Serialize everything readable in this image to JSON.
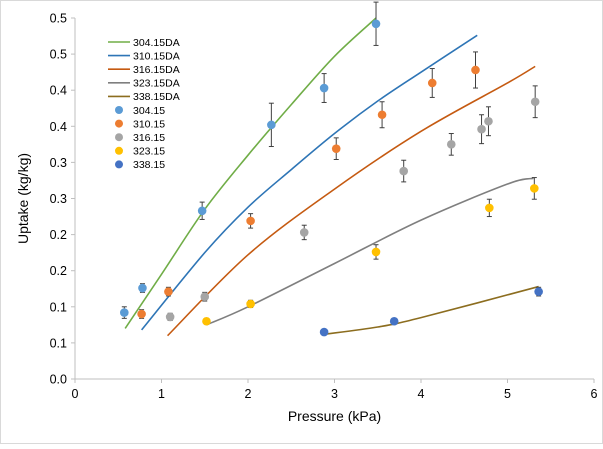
{
  "chart_data": {
    "type": "scatter",
    "title": "",
    "xlabel": "Pressure (kPa)",
    "ylabel": "Uptake (kg/kg)",
    "xlim": [
      0,
      6
    ],
    "ylim": [
      0,
      0.5
    ],
    "x_ticks": [
      0,
      1,
      2,
      3,
      4,
      5,
      6
    ],
    "y_ticks": [
      0,
      0.05,
      0.1,
      0.15,
      0.2,
      0.25,
      0.3,
      0.35,
      0.4,
      0.45,
      0.5
    ],
    "x_tick_labels": [
      "0",
      "1",
      "2",
      "3",
      "4",
      "5",
      "6"
    ],
    "y_tick_labels": [
      "0.0",
      "0.1",
      "0.1",
      "0.2",
      "0.2",
      "0.3",
      "0.3",
      "0.4",
      "0.4",
      "0.5",
      "0.5"
    ],
    "grid": false,
    "legend_position": "top-left",
    "fit_lines": [
      {
        "name": "304.15DA",
        "color": "#70ad47",
        "x": [
          0.58,
          1.0,
          1.5,
          2.0,
          2.5,
          3.0,
          3.48
        ],
        "y": [
          0.07,
          0.145,
          0.235,
          0.31,
          0.38,
          0.447,
          0.5
        ]
      },
      {
        "name": "310.15DA",
        "color": "#2e75b6",
        "x": [
          0.77,
          1.5,
          2.0,
          2.5,
          3.0,
          3.5,
          4.0,
          4.65
        ],
        "y": [
          0.068,
          0.175,
          0.238,
          0.29,
          0.34,
          0.385,
          0.425,
          0.476
        ]
      },
      {
        "name": "316.15DA",
        "color": "#c55a11",
        "x": [
          1.07,
          2.0,
          3.0,
          4.0,
          5.0,
          5.32
        ],
        "y": [
          0.06,
          0.172,
          0.263,
          0.343,
          0.41,
          0.433
        ]
      },
      {
        "name": "323.15DA",
        "color": "#7f7f7f",
        "x": [
          1.52,
          2.0,
          3.0,
          4.0,
          5.0,
          5.3
        ],
        "y": [
          0.075,
          0.1,
          0.16,
          0.22,
          0.27,
          0.278
        ]
      },
      {
        "name": "338.15DA",
        "color": "#8c6d1f",
        "x": [
          2.88,
          3.5,
          4.0,
          5.36
        ],
        "y": [
          0.062,
          0.072,
          0.085,
          0.128
        ]
      }
    ],
    "series": [
      {
        "name": "304.15",
        "color": "#5b9bd5",
        "x": [
          0.57,
          0.78,
          1.47,
          2.27,
          2.88,
          3.48
        ],
        "y": [
          0.092,
          0.126,
          0.233,
          0.352,
          0.403,
          0.492
        ],
        "err": [
          0.008,
          0.006,
          0.012,
          0.03,
          0.02,
          0.03
        ]
      },
      {
        "name": "310.15",
        "color": "#ed7d31",
        "x": [
          0.77,
          1.08,
          2.03,
          3.02,
          3.55,
          4.13,
          4.63
        ],
        "y": [
          0.09,
          0.121,
          0.219,
          0.319,
          0.366,
          0.41,
          0.428
        ],
        "err": [
          0.006,
          0.006,
          0.01,
          0.015,
          0.018,
          0.02,
          0.025
        ]
      },
      {
        "name": "316.15",
        "color": "#a5a5a5",
        "x": [
          1.1,
          1.5,
          2.65,
          3.8,
          4.35,
          4.7,
          4.78,
          5.32
        ],
        "y": [
          0.086,
          0.114,
          0.203,
          0.288,
          0.325,
          0.346,
          0.357,
          0.384
        ],
        "err": [
          0.005,
          0.006,
          0.01,
          0.015,
          0.015,
          0.02,
          0.02,
          0.022
        ]
      },
      {
        "name": "323.15",
        "color": "#ffc000",
        "x": [
          1.52,
          2.03,
          3.48,
          4.79,
          5.31
        ],
        "y": [
          0.08,
          0.104,
          0.176,
          0.237,
          0.264
        ],
        "err": [
          0.004,
          0.005,
          0.01,
          0.012,
          0.015
        ]
      },
      {
        "name": "338.15",
        "color": "#4472c4",
        "x": [
          2.88,
          3.69,
          5.36
        ],
        "y": [
          0.065,
          0.08,
          0.121
        ],
        "err": [
          0.002,
          0.004,
          0.006
        ]
      }
    ]
  }
}
